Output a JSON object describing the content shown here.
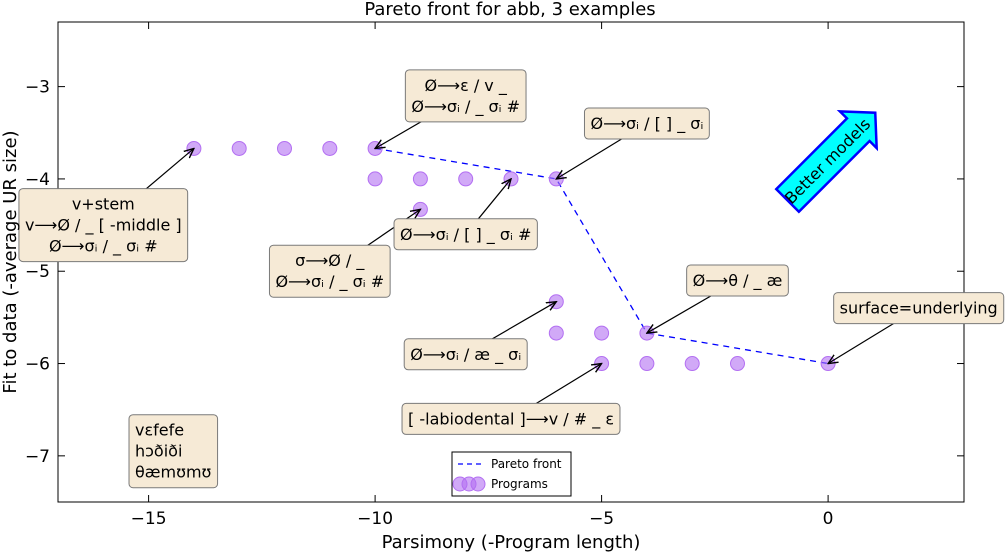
{
  "chart_data": {
    "type": "scatter",
    "title": "Pareto front for abb, 3 examples",
    "xlabel": "Parsimony (-Program length)",
    "ylabel": "Fit to data (-average UR size)",
    "xlim": [
      -17,
      3
    ],
    "ylim": [
      -7.5,
      -2.3
    ],
    "xticks": [
      -15,
      -10,
      -5,
      0
    ],
    "yticks": [
      -7,
      -6,
      -5,
      -4,
      -3
    ],
    "xtick_labels": [
      "−15",
      "−10",
      "−5",
      "0"
    ],
    "ytick_labels": [
      "−7",
      "−6",
      "−5",
      "−4",
      "−3"
    ],
    "grid": false,
    "legend_position": "lower-center",
    "series": [
      {
        "name": "Pareto front",
        "kind": "line",
        "style": "dashed",
        "color": "#0000ff",
        "x": [
          -10,
          -6,
          -4,
          0
        ],
        "y": [
          -3.67,
          -4.0,
          -5.67,
          -6.0
        ]
      },
      {
        "name": "Programs",
        "kind": "scatter",
        "color": "#b36ff2",
        "x": [
          -14,
          -13,
          -12,
          -11,
          -10,
          -10,
          -9,
          -8,
          -7,
          -6,
          -9,
          -6,
          -6,
          -5,
          -4,
          -5,
          -4,
          -3,
          -2,
          0
        ],
        "y": [
          -3.67,
          -3.67,
          -3.67,
          -3.67,
          -3.67,
          -4.0,
          -4.0,
          -4.0,
          -4.0,
          -4.0,
          -4.33,
          -5.33,
          -5.67,
          -5.67,
          -5.67,
          -6.0,
          -6.0,
          -6.0,
          -6.0,
          -6.0
        ]
      }
    ],
    "annotations": [
      {
        "lines": [
          "Ø⟶ε / v _",
          "Ø⟶σᵢ /  _ σᵢ #"
        ],
        "point": [
          -10,
          -3.67
        ],
        "text_at": [
          -8,
          -3.1
        ]
      },
      {
        "lines": [
          "Ø⟶σᵢ / [  ] _ σᵢ"
        ],
        "point": [
          -6,
          -4.0
        ],
        "text_at": [
          -4,
          -3.4
        ]
      },
      {
        "lines": [
          "v+stem",
          "v⟶Ø /  _ [ -middle ]",
          "Ø⟶σᵢ /  _ σᵢ #"
        ],
        "point": [
          -14,
          -3.67
        ],
        "text_at": [
          -16,
          -4.5
        ]
      },
      {
        "lines": [
          "Ø⟶σᵢ / [  ] _ σᵢ #"
        ],
        "point": [
          -7,
          -4.0
        ],
        "text_at": [
          -8,
          -4.6
        ]
      },
      {
        "lines": [
          "σ⟶Ø /  _",
          "Ø⟶σᵢ /  _ σᵢ #"
        ],
        "point": [
          -9,
          -4.33
        ],
        "text_at": [
          -11,
          -5.0
        ]
      },
      {
        "lines": [
          "Ø⟶θ /  _ æ"
        ],
        "point": [
          -4,
          -5.67
        ],
        "text_at": [
          -2,
          -5.1
        ]
      },
      {
        "lines": [
          "surface=underlying"
        ],
        "point": [
          0,
          -6.0
        ],
        "text_at": [
          2,
          -5.4
        ]
      },
      {
        "lines": [
          "Ø⟶σᵢ / æ _ σᵢ"
        ],
        "point": [
          -6,
          -5.33
        ],
        "text_at": [
          -8,
          -5.9
        ]
      },
      {
        "lines": [
          "[ -labiodental ]⟶v / # _ ε"
        ],
        "point": [
          -5,
          -6.0
        ],
        "text_at": [
          -7,
          -6.6
        ]
      }
    ],
    "examples_box": {
      "lines": [
        "vɛfefe",
        "hɔðiði",
        "θæmʊmʊ"
      ],
      "text_at": [
        -15.3,
        -6.95
      ]
    },
    "better_models_arrow": {
      "label": "Better models",
      "fill": "#00ffff",
      "edge": "#0000ff"
    },
    "annotation_box_fill": "#f6ead6"
  }
}
